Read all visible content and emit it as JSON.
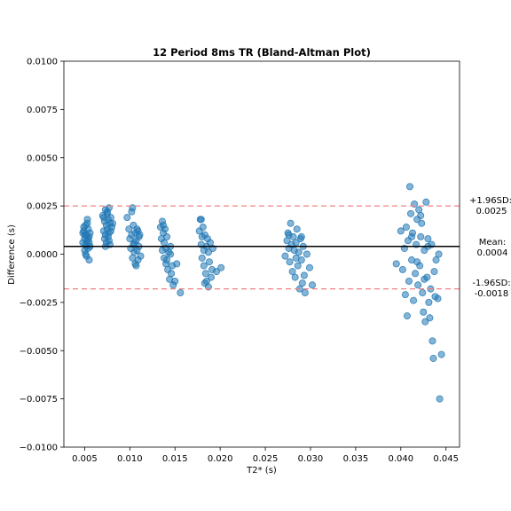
{
  "chart_data": {
    "type": "scatter",
    "title": "12 Period 8ms TR (Bland-Altman Plot)",
    "xlabel": "T2* (s)",
    "ylabel": "Difference (s)",
    "xlim": [
      0.0027,
      0.0465
    ],
    "ylim": [
      -0.01,
      0.01
    ],
    "x_ticks": [
      0.005,
      0.01,
      0.015,
      0.02,
      0.025,
      0.03,
      0.035,
      0.04,
      0.045
    ],
    "x_tick_labels": [
      "0.005",
      "0.010",
      "0.015",
      "0.020",
      "0.025",
      "0.030",
      "0.035",
      "0.040",
      "0.045"
    ],
    "y_ticks": [
      -0.01,
      -0.0075,
      -0.005,
      -0.0025,
      0.0,
      0.0025,
      0.005,
      0.0075,
      0.01
    ],
    "y_tick_labels": [
      "−0.0100",
      "−0.0075",
      "−0.0050",
      "−0.0025",
      "0.0000",
      "0.0025",
      "0.0050",
      "0.0075",
      "0.0100"
    ],
    "grid": false,
    "point_color": "#1f77b4",
    "mean_line_color": "#000000",
    "limit_line_color": "#f08080",
    "mean": 0.0004,
    "upper_loa": 0.0025,
    "lower_loa": -0.0018,
    "annotations": {
      "upper_label": "+1.96SD:",
      "upper_value": "0.0025",
      "mean_label": "Mean:",
      "mean_value": "0.0004",
      "lower_label": "-1.96SD:",
      "lower_value": "-0.0018"
    },
    "points": [
      [
        0.0048,
        0.0006
      ],
      [
        0.0049,
        0.0012
      ],
      [
        0.005,
        0.0008
      ],
      [
        0.005,
        0.0002
      ],
      [
        0.0051,
        0.0015
      ],
      [
        0.0051,
        0.0005
      ],
      [
        0.0052,
        0.001
      ],
      [
        0.0052,
        -0.0001
      ],
      [
        0.0053,
        0.0018
      ],
      [
        0.0053,
        0.0007
      ],
      [
        0.0054,
        0.0003
      ],
      [
        0.0054,
        0.0013
      ],
      [
        0.0055,
        0.0009
      ],
      [
        0.0055,
        -0.0003
      ],
      [
        0.0056,
        0.0011
      ],
      [
        0.0056,
        0.0004
      ],
      [
        0.0049,
        0.0014
      ],
      [
        0.0051,
        0.0
      ],
      [
        0.0053,
        0.0016
      ],
      [
        0.0055,
        0.0006
      ],
      [
        0.005,
        0.001
      ],
      [
        0.0052,
        0.0004
      ],
      [
        0.0054,
        0.0008
      ],
      [
        0.0048,
        0.0011
      ],
      [
        0.007,
        0.002
      ],
      [
        0.0071,
        0.0012
      ],
      [
        0.0072,
        0.0008
      ],
      [
        0.0072,
        0.0017
      ],
      [
        0.0073,
        0.0023
      ],
      [
        0.0073,
        0.001
      ],
      [
        0.0074,
        0.0015
      ],
      [
        0.0074,
        0.0006
      ],
      [
        0.0075,
        0.0021
      ],
      [
        0.0075,
        0.0013
      ],
      [
        0.0076,
        0.0018
      ],
      [
        0.0076,
        0.0009
      ],
      [
        0.0077,
        0.0024
      ],
      [
        0.0077,
        0.0011
      ],
      [
        0.0078,
        0.0016
      ],
      [
        0.0078,
        0.0005
      ],
      [
        0.0079,
        0.0019
      ],
      [
        0.008,
        0.0014
      ],
      [
        0.0081,
        0.0016
      ],
      [
        0.0071,
        0.0019
      ],
      [
        0.0073,
        0.0004
      ],
      [
        0.0075,
        0.0022
      ],
      [
        0.0077,
        0.0007
      ],
      [
        0.0079,
        0.0012
      ],
      [
        0.0097,
        0.0019
      ],
      [
        0.0099,
        0.0013
      ],
      [
        0.01,
        0.0008
      ],
      [
        0.0101,
        0.0003
      ],
      [
        0.0102,
        0.0022
      ],
      [
        0.0102,
        0.001
      ],
      [
        0.0103,
        -0.0002
      ],
      [
        0.0104,
        0.0015
      ],
      [
        0.0104,
        0.0005
      ],
      [
        0.0105,
        0.0001
      ],
      [
        0.0106,
        0.0011
      ],
      [
        0.0106,
        -0.0005
      ],
      [
        0.0107,
        0.0007
      ],
      [
        0.0108,
        0.0013
      ],
      [
        0.0108,
        0.0002
      ],
      [
        0.0109,
        -0.0003
      ],
      [
        0.011,
        0.0009
      ],
      [
        0.011,
        0.0004
      ],
      [
        0.0111,
        0.001
      ],
      [
        0.0112,
        -0.0001
      ],
      [
        0.0103,
        0.0024
      ],
      [
        0.0105,
        0.0006
      ],
      [
        0.0107,
        -0.0006
      ],
      [
        0.0109,
        0.0012
      ],
      [
        0.0134,
        0.0014
      ],
      [
        0.0135,
        0.0008
      ],
      [
        0.0136,
        0.0017
      ],
      [
        0.0136,
        0.0002
      ],
      [
        0.0137,
        0.0011
      ],
      [
        0.0138,
        -0.0002
      ],
      [
        0.0138,
        0.0006
      ],
      [
        0.0139,
        0.0013
      ],
      [
        0.014,
        -0.0005
      ],
      [
        0.014,
        0.0003
      ],
      [
        0.0141,
        0.0009
      ],
      [
        0.0142,
        -0.0008
      ],
      [
        0.0143,
        0.0001
      ],
      [
        0.0144,
        -0.0013
      ],
      [
        0.0145,
        0.0004
      ],
      [
        0.0146,
        -0.001
      ],
      [
        0.0147,
        -0.0006
      ],
      [
        0.0148,
        -0.0016
      ],
      [
        0.015,
        -0.0014
      ],
      [
        0.0152,
        -0.0005
      ],
      [
        0.0156,
        -0.002
      ],
      [
        0.0137,
        0.0015
      ],
      [
        0.0141,
        -0.0003
      ],
      [
        0.0145,
        0.0
      ],
      [
        0.0177,
        0.0012
      ],
      [
        0.0178,
        0.0018
      ],
      [
        0.0179,
        0.0005
      ],
      [
        0.018,
        -0.0002
      ],
      [
        0.018,
        0.0009
      ],
      [
        0.0181,
        0.0014
      ],
      [
        0.0182,
        -0.0006
      ],
      [
        0.0182,
        0.0002
      ],
      [
        0.0183,
        0.001
      ],
      [
        0.0184,
        -0.001
      ],
      [
        0.0185,
        0.0004
      ],
      [
        0.0185,
        -0.0014
      ],
      [
        0.0186,
        0.0008
      ],
      [
        0.0187,
        -0.0017
      ],
      [
        0.0188,
        -0.0004
      ],
      [
        0.0189,
        0.0006
      ],
      [
        0.019,
        -0.0012
      ],
      [
        0.0191,
        -0.0008
      ],
      [
        0.0192,
        0.0003
      ],
      [
        0.0196,
        -0.0009
      ],
      [
        0.0201,
        -0.0007
      ],
      [
        0.0179,
        0.0018
      ],
      [
        0.0183,
        -0.0015
      ],
      [
        0.0187,
        0.0001
      ],
      [
        0.0272,
        -0.0001
      ],
      [
        0.0274,
        0.0007
      ],
      [
        0.0275,
        0.0011
      ],
      [
        0.0276,
        0.0003
      ],
      [
        0.0277,
        -0.0004
      ],
      [
        0.0278,
        0.0016
      ],
      [
        0.0279,
        0.0005
      ],
      [
        0.028,
        -0.0009
      ],
      [
        0.0281,
        0.0009
      ],
      [
        0.0282,
        0.0002
      ],
      [
        0.0283,
        -0.0012
      ],
      [
        0.0284,
        0.0006
      ],
      [
        0.0285,
        0.0013
      ],
      [
        0.0286,
        -0.0006
      ],
      [
        0.0287,
        0.0001
      ],
      [
        0.0288,
        -0.0018
      ],
      [
        0.0289,
        0.0008
      ],
      [
        0.029,
        -0.0003
      ],
      [
        0.0291,
        -0.0015
      ],
      [
        0.0292,
        0.0004
      ],
      [
        0.0293,
        -0.0011
      ],
      [
        0.0294,
        -0.002
      ],
      [
        0.0296,
        0.0
      ],
      [
        0.0299,
        -0.0007
      ],
      [
        0.0302,
        -0.0016
      ],
      [
        0.0276,
        0.001
      ],
      [
        0.0284,
        -0.0002
      ],
      [
        0.029,
        0.0009
      ],
      [
        0.0395,
        -0.0005
      ],
      [
        0.04,
        0.0012
      ],
      [
        0.0402,
        -0.0008
      ],
      [
        0.0404,
        0.0003
      ],
      [
        0.0405,
        -0.0021
      ],
      [
        0.0406,
        0.0014
      ],
      [
        0.0407,
        -0.0032
      ],
      [
        0.0408,
        0.0007
      ],
      [
        0.0409,
        -0.0014
      ],
      [
        0.041,
        0.0035
      ],
      [
        0.0411,
        0.0021
      ],
      [
        0.0412,
        -0.0003
      ],
      [
        0.0413,
        0.0011
      ],
      [
        0.0414,
        -0.0024
      ],
      [
        0.0415,
        0.0026
      ],
      [
        0.0416,
        -0.001
      ],
      [
        0.0417,
        0.0005
      ],
      [
        0.0418,
        0.0018
      ],
      [
        0.0419,
        -0.0016
      ],
      [
        0.042,
        0.0023
      ],
      [
        0.0421,
        -0.0006
      ],
      [
        0.0422,
        0.0009
      ],
      [
        0.0423,
        0.0016
      ],
      [
        0.0424,
        -0.002
      ],
      [
        0.0425,
        -0.003
      ],
      [
        0.0426,
        0.0002
      ],
      [
        0.0427,
        -0.0035
      ],
      [
        0.0428,
        0.0027
      ],
      [
        0.0429,
        -0.0012
      ],
      [
        0.043,
        0.0008
      ],
      [
        0.0431,
        -0.0025
      ],
      [
        0.0432,
        -0.0033
      ],
      [
        0.0433,
        -0.0018
      ],
      [
        0.0434,
        0.0005
      ],
      [
        0.0435,
        -0.0045
      ],
      [
        0.0436,
        -0.0054
      ],
      [
        0.0437,
        -0.0009
      ],
      [
        0.0438,
        -0.0022
      ],
      [
        0.0439,
        -0.0003
      ],
      [
        0.0441,
        -0.0023
      ],
      [
        0.0443,
        -0.0075
      ],
      [
        0.0445,
        -0.0052
      ],
      [
        0.0442,
        0.0
      ],
      [
        0.0418,
        -0.0004
      ],
      [
        0.0422,
        0.002
      ],
      [
        0.0426,
        -0.0013
      ],
      [
        0.043,
        0.0004
      ],
      [
        0.0412,
        0.0009
      ]
    ]
  }
}
